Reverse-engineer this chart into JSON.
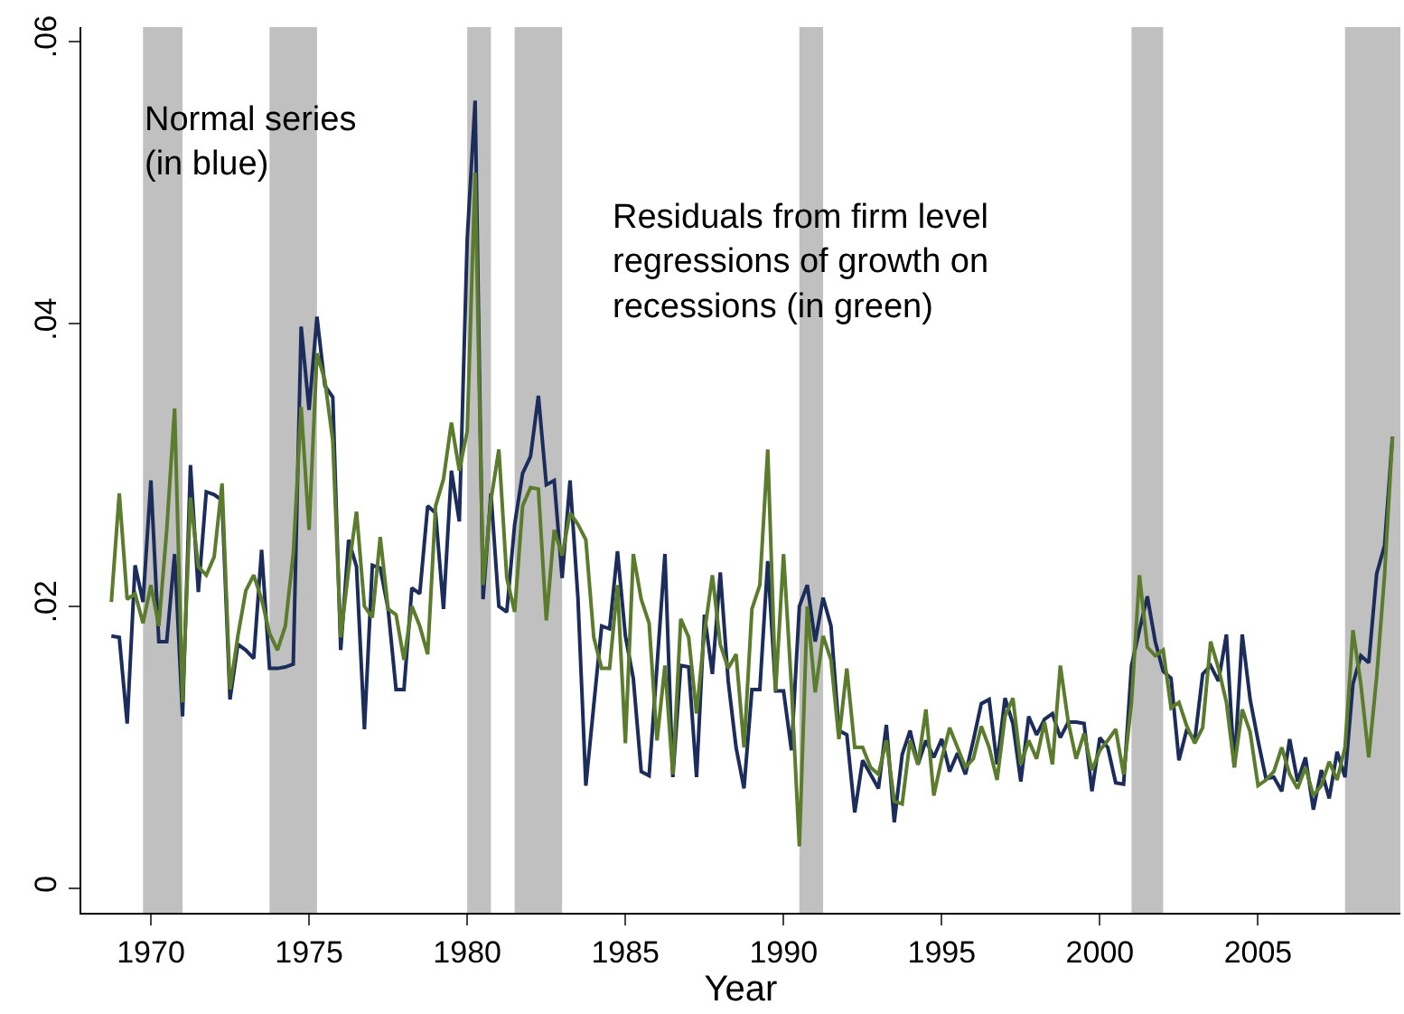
{
  "chart_data": {
    "type": "line",
    "xlabel": "Year",
    "annotations": [
      "Normal series\n(in blue)",
      "Residuals from firm level\nregressions of growth on\nrecessions (in green)"
    ],
    "x": [
      1968.75,
      1969.0,
      1969.25,
      1969.5,
      1969.75,
      1970.0,
      1970.25,
      1970.5,
      1970.75,
      1971.0,
      1971.25,
      1971.5,
      1971.75,
      1972.0,
      1972.25,
      1972.5,
      1972.75,
      1973.0,
      1973.25,
      1973.5,
      1973.75,
      1974.0,
      1974.25,
      1974.5,
      1974.75,
      1975.0,
      1975.25,
      1975.5,
      1975.75,
      1976.0,
      1976.25,
      1976.5,
      1976.75,
      1977.0,
      1977.25,
      1977.5,
      1977.75,
      1978.0,
      1978.25,
      1978.5,
      1978.75,
      1979.0,
      1979.25,
      1979.5,
      1979.75,
      1980.0,
      1980.25,
      1980.5,
      1980.75,
      1981.0,
      1981.25,
      1981.5,
      1981.75,
      1982.0,
      1982.25,
      1982.5,
      1982.75,
      1983.0,
      1983.25,
      1983.5,
      1983.75,
      1984.0,
      1984.25,
      1984.5,
      1984.75,
      1985.0,
      1985.25,
      1985.5,
      1985.75,
      1986.0,
      1986.25,
      1986.5,
      1986.75,
      1987.0,
      1987.25,
      1987.5,
      1987.75,
      1988.0,
      1988.25,
      1988.5,
      1988.75,
      1989.0,
      1989.25,
      1989.5,
      1989.75,
      1990.0,
      1990.25,
      1990.5,
      1990.75,
      1991.0,
      1991.25,
      1991.5,
      1991.75,
      1992.0,
      1992.25,
      1992.5,
      1992.75,
      1993.0,
      1993.25,
      1993.5,
      1993.75,
      1994.0,
      1994.25,
      1994.5,
      1994.75,
      1995.0,
      1995.25,
      1995.5,
      1995.75,
      1996.0,
      1996.25,
      1996.5,
      1996.75,
      1997.0,
      1997.25,
      1997.5,
      1997.75,
      1998.0,
      1998.25,
      1998.5,
      1998.75,
      1999.0,
      1999.25,
      1999.5,
      1999.75,
      2000.0,
      2000.25,
      2000.5,
      2000.75,
      2001.0,
      2001.25,
      2001.5,
      2001.75,
      2002.0,
      2002.25,
      2002.5,
      2002.75,
      2003.0,
      2003.25,
      2003.5,
      2003.75,
      2004.0,
      2004.25,
      2004.5,
      2004.75,
      2005.0,
      2005.25,
      2005.5,
      2005.75,
      2006.0,
      2006.25,
      2006.5,
      2006.75,
      2007.0,
      2007.25,
      2007.5,
      2007.75,
      2008.0,
      2008.25,
      2008.5,
      2008.75,
      2009.0,
      2009.25
    ],
    "series": [
      {
        "color": "#1c2d5c",
        "values": [
          0.0179,
          0.0178,
          0.0117,
          0.0229,
          0.0203,
          0.0289,
          0.0175,
          0.0175,
          0.0237,
          0.0122,
          0.03,
          0.021,
          0.0281,
          0.0279,
          0.0275,
          0.0134,
          0.0173,
          0.0169,
          0.0163,
          0.024,
          0.0156,
          0.0156,
          0.0157,
          0.0159,
          0.0398,
          0.0339,
          0.0405,
          0.0356,
          0.0348,
          0.0169,
          0.0247,
          0.0228,
          0.0113,
          0.0229,
          0.0227,
          0.0198,
          0.0141,
          0.0141,
          0.0213,
          0.0209,
          0.0271,
          0.0266,
          0.0198,
          0.0296,
          0.026,
          0.046,
          0.0558,
          0.0205,
          0.028,
          0.02,
          0.0196,
          0.0258,
          0.0294,
          0.0306,
          0.0349,
          0.0286,
          0.0289,
          0.022,
          0.0289,
          0.0206,
          0.0073,
          0.013,
          0.0186,
          0.0184,
          0.0239,
          0.0179,
          0.0149,
          0.0083,
          0.008,
          0.0158,
          0.0237,
          0.0079,
          0.0158,
          0.0157,
          0.0079,
          0.0194,
          0.0152,
          0.0224,
          0.0147,
          0.01,
          0.0071,
          0.0141,
          0.0141,
          0.0232,
          0.014,
          0.014,
          0.0098,
          0.02,
          0.0215,
          0.0175,
          0.0206,
          0.0186,
          0.0112,
          0.0109,
          0.0054,
          0.0091,
          0.0081,
          0.0071,
          0.0116,
          0.0047,
          0.0095,
          0.0112,
          0.0088,
          0.0105,
          0.0093,
          0.0106,
          0.0083,
          0.0096,
          0.0081,
          0.0105,
          0.0131,
          0.0134,
          0.0088,
          0.0135,
          0.0117,
          0.0076,
          0.0122,
          0.0109,
          0.012,
          0.0124,
          0.0107,
          0.0118,
          0.0118,
          0.0117,
          0.0069,
          0.0107,
          0.01,
          0.0075,
          0.0074,
          0.0158,
          0.0183,
          0.0207,
          0.0175,
          0.0154,
          0.0149,
          0.0091,
          0.0113,
          0.0105,
          0.0152,
          0.0158,
          0.0147,
          0.018,
          0.0086,
          0.018,
          0.0134,
          0.0105,
          0.0078,
          0.0079,
          0.0069,
          0.0106,
          0.0076,
          0.0093,
          0.0056,
          0.0084,
          0.0064,
          0.0097,
          0.0079,
          0.0145,
          0.0165,
          0.016,
          0.0223,
          0.0243,
          0.032
        ]
      },
      {
        "color": "#5b7c2c",
        "values": [
          0.0203,
          0.028,
          0.0205,
          0.0209,
          0.0188,
          0.0215,
          0.0186,
          0.0254,
          0.034,
          0.0132,
          0.0277,
          0.0228,
          0.0222,
          0.0235,
          0.0287,
          0.0141,
          0.0179,
          0.0211,
          0.0222,
          0.0205,
          0.0181,
          0.0169,
          0.0186,
          0.0237,
          0.0341,
          0.0254,
          0.0379,
          0.036,
          0.0317,
          0.0178,
          0.0226,
          0.0267,
          0.02,
          0.0192,
          0.0249,
          0.0198,
          0.0194,
          0.0162,
          0.02,
          0.0186,
          0.0166,
          0.0271,
          0.029,
          0.033,
          0.0296,
          0.0324,
          0.0507,
          0.0215,
          0.0275,
          0.0311,
          0.022,
          0.0196,
          0.0271,
          0.0284,
          0.0283,
          0.019,
          0.0254,
          0.0236,
          0.0266,
          0.0258,
          0.0247,
          0.0178,
          0.0156,
          0.0156,
          0.0215,
          0.0103,
          0.0237,
          0.0205,
          0.0188,
          0.0105,
          0.0158,
          0.0081,
          0.0191,
          0.0178,
          0.0124,
          0.0181,
          0.0222,
          0.0173,
          0.0156,
          0.0166,
          0.01,
          0.0198,
          0.0215,
          0.0311,
          0.014,
          0.0237,
          0.0143,
          0.003,
          0.02,
          0.0139,
          0.0179,
          0.0162,
          0.0106,
          0.0156,
          0.01,
          0.01,
          0.0086,
          0.0081,
          0.0105,
          0.0062,
          0.006,
          0.0105,
          0.0088,
          0.0127,
          0.0066,
          0.0092,
          0.0114,
          0.01,
          0.0086,
          0.0092,
          0.0115,
          0.01,
          0.0077,
          0.0122,
          0.0135,
          0.0088,
          0.0105,
          0.0092,
          0.0118,
          0.0088,
          0.0158,
          0.0118,
          0.0092,
          0.011,
          0.0084,
          0.0098,
          0.0105,
          0.0113,
          0.0081,
          0.0132,
          0.0222,
          0.0171,
          0.0165,
          0.0169,
          0.0128,
          0.0132,
          0.0115,
          0.0103,
          0.0114,
          0.0175,
          0.0156,
          0.0132,
          0.0086,
          0.0127,
          0.0111,
          0.0073,
          0.0077,
          0.0083,
          0.01,
          0.0081,
          0.0071,
          0.0086,
          0.0066,
          0.0073,
          0.009,
          0.0077,
          0.01,
          0.0183,
          0.0145,
          0.0093,
          0.015,
          0.0222,
          0.032
        ]
      }
    ],
    "bands": [
      {
        "axis": "x",
        "from": 1969.75,
        "to": 1971.0,
        "color": "#c0c0c0"
      },
      {
        "axis": "x",
        "from": 1973.75,
        "to": 1975.25,
        "color": "#c0c0c0"
      },
      {
        "axis": "x",
        "from": 1980.0,
        "to": 1980.75,
        "color": "#c0c0c0"
      },
      {
        "axis": "x",
        "from": 1981.5,
        "to": 1983.0,
        "color": "#c0c0c0"
      },
      {
        "axis": "x",
        "from": 1990.5,
        "to": 1991.25,
        "color": "#c0c0c0"
      },
      {
        "axis": "x",
        "from": 2001.0,
        "to": 2002.0,
        "color": "#c0c0c0"
      },
      {
        "axis": "x",
        "from": 2007.75,
        "to": 2009.5,
        "color": "#c0c0c0"
      }
    ],
    "xlim": [
      1967.8,
      2009.5
    ],
    "xticks": [
      1970,
      1975,
      1980,
      1985,
      1990,
      1995,
      2000,
      2005
    ],
    "ylim": [
      -0.0017,
      0.061
    ],
    "yticks": [
      0,
      {
        "value": 0.02,
        "label": ".02"
      },
      {
        "value": 0.04,
        "label": ".04"
      },
      {
        "value": 0.06,
        "label": ".06"
      }
    ],
    "line_style": "solid"
  }
}
